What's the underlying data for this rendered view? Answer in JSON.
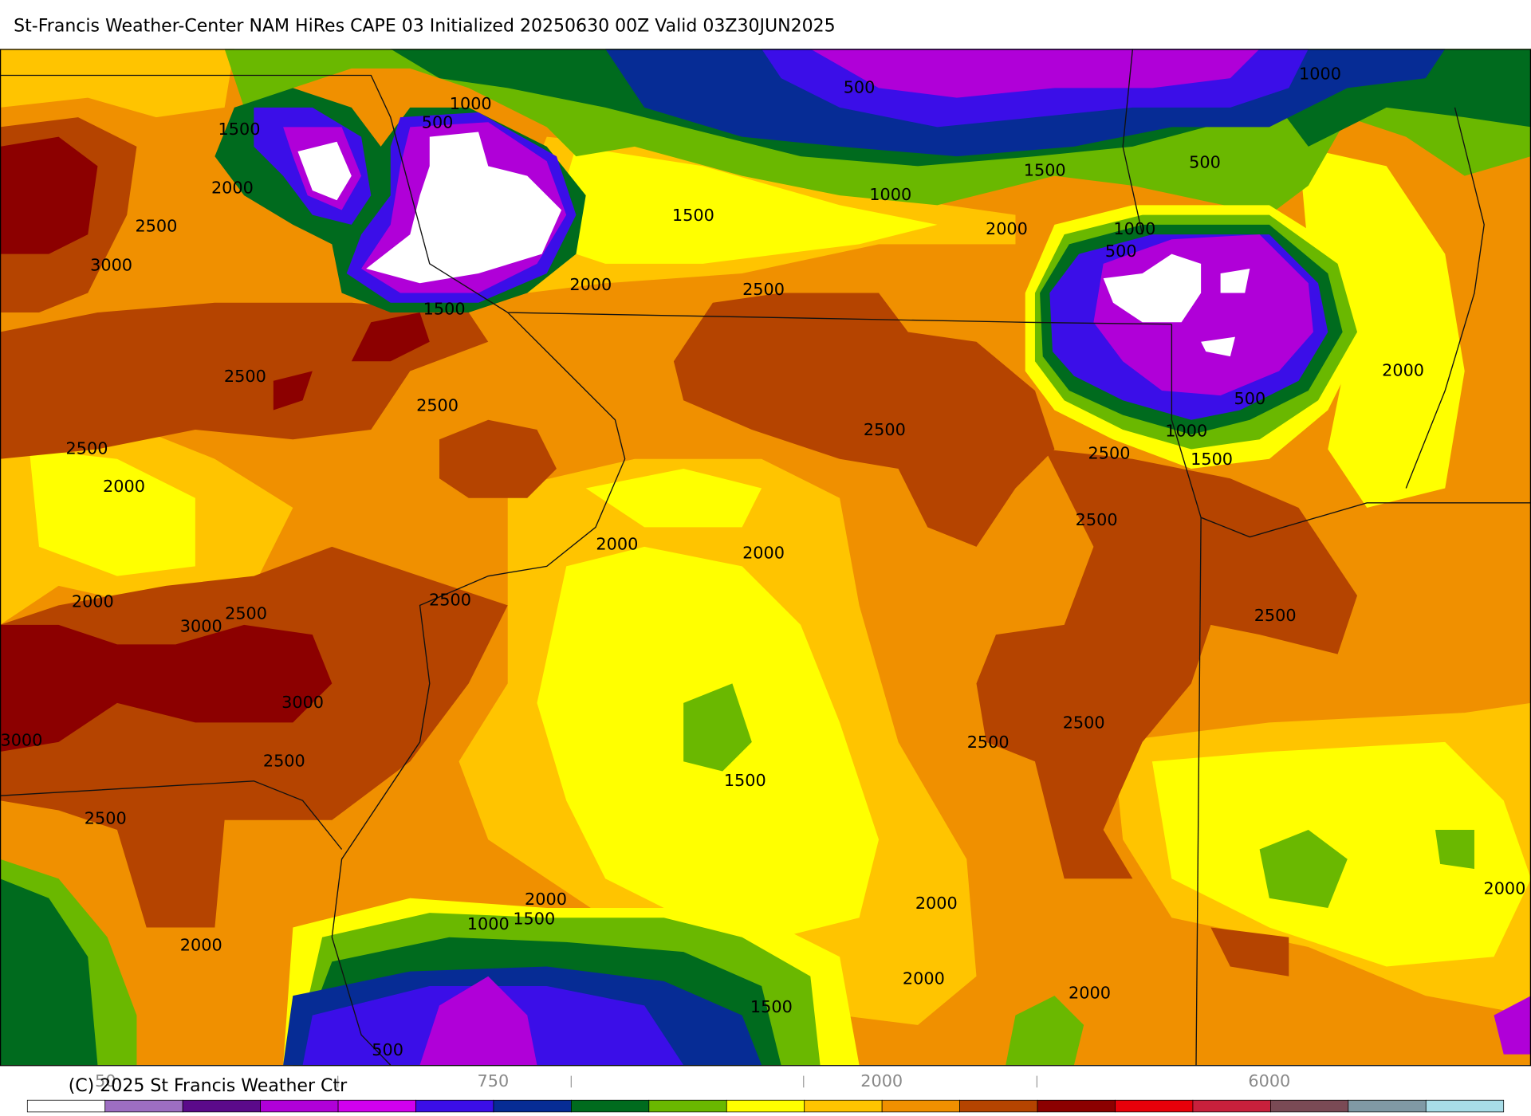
{
  "header": {
    "title": "St-Francis Weather-Center NAM HiRes CAPE  03 Initialized 20250630 00Z Valid 03Z30JUN2025"
  },
  "contour_labels": [
    "1000",
    "500",
    "1500",
    "2000",
    "2500",
    "3000",
    "500",
    "1000",
    "500",
    "1500",
    "1000",
    "1500",
    "2000",
    "1000",
    "500",
    "2000",
    "2500",
    "1500",
    "2000",
    "2500",
    "2500",
    "500",
    "2500",
    "1000",
    "2500",
    "2500",
    "1500",
    "2000",
    "2500",
    "2000",
    "2000",
    "2500",
    "2000",
    "2500",
    "3000",
    "2500",
    "3000",
    "2500",
    "3000",
    "2500",
    "2500",
    "1500",
    "2500",
    "2000",
    "2000",
    "2000",
    "1500",
    "1000",
    "2000",
    "2000",
    "2000",
    "1500",
    "500"
  ],
  "colorbar": {
    "colors": [
      "#ffffff",
      "#9d6ec2",
      "#5b0a8a",
      "#b000d8",
      "#d000ee",
      "#3b0ee8",
      "#062c95",
      "#006b1e",
      "#6ab800",
      "#ffff00",
      "#ffc400",
      "#f09000",
      "#b54400",
      "#8c0000",
      "#e8000a",
      "#c8203c",
      "#7a4a55",
      "#8099a5",
      "#a8dde8"
    ],
    "labels": [
      "50",
      "750",
      "2000",
      "6000"
    ]
  },
  "footer": {
    "copyright": "(C) 2025 St Francis Weather Ctr"
  }
}
